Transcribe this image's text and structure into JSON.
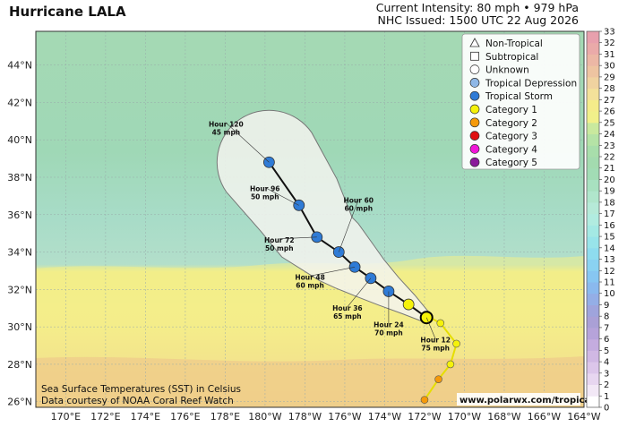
{
  "header": {
    "title": "Hurricane LALA",
    "intensity": "Current Intensity: 80 mph • 979 hPa",
    "issued": "NHC Issued: 1500 UTC 22 Aug 2026"
  },
  "map": {
    "lat_labels": [
      "44°N",
      "42°N",
      "40°N",
      "38°N",
      "36°N",
      "34°N",
      "32°N",
      "30°N",
      "28°N",
      "26°N"
    ],
    "lon_labels": [
      "170°E",
      "172°E",
      "174°E",
      "176°E",
      "178°E",
      "180°W",
      "178°W",
      "176°W",
      "174°W",
      "172°W",
      "170°W",
      "168°W",
      "166°W",
      "164°W"
    ],
    "lat_range": [
      25.7,
      45.8
    ],
    "lon_range": [
      168.5,
      196.0
    ],
    "gridlines": true
  },
  "legend": {
    "items": [
      {
        "label": "Non-Tropical",
        "marker": "triangle",
        "color": "#ffffff"
      },
      {
        "label": "Subtropical",
        "marker": "square",
        "color": "#ffffff"
      },
      {
        "label": "Unknown",
        "marker": "circle",
        "color": "#ffffff"
      },
      {
        "label": "Tropical Depression",
        "marker": "circle",
        "color": "#8fb8e6"
      },
      {
        "label": "Tropical Storm",
        "marker": "circle",
        "color": "#2f7bd6"
      },
      {
        "label": "Category 1",
        "marker": "circle",
        "color": "#f5f20a"
      },
      {
        "label": "Category 2",
        "marker": "circle",
        "color": "#f59a0a"
      },
      {
        "label": "Category 3",
        "marker": "circle",
        "color": "#e01010"
      },
      {
        "label": "Category 4",
        "marker": "circle",
        "color": "#f018d8"
      },
      {
        "label": "Category 5",
        "marker": "circle",
        "color": "#8a1a9a"
      }
    ]
  },
  "colorbar": {
    "labels": [
      "0",
      "1",
      "2",
      "3",
      "4",
      "5",
      "6",
      "7",
      "8",
      "9",
      "10",
      "11",
      "12",
      "13",
      "14",
      "15",
      "16",
      "17",
      "18",
      "19",
      "20",
      "21",
      "22",
      "23",
      "24",
      "25",
      "26",
      "27",
      "28",
      "29",
      "30",
      "31",
      "32",
      "33"
    ]
  },
  "past_track": [
    {
      "lat": 26.1,
      "lon": 188.0,
      "cat": "cat2"
    },
    {
      "lat": 27.2,
      "lon": 188.7,
      "cat": "cat2"
    },
    {
      "lat": 28.0,
      "lon": 189.3,
      "cat": "cat1"
    },
    {
      "lat": 29.1,
      "lon": 189.6,
      "cat": "cat1"
    },
    {
      "lat": 30.2,
      "lon": 188.8,
      "cat": "cat1"
    },
    {
      "lat": 30.6,
      "lon": 188.1,
      "cat": "cat1"
    }
  ],
  "forecast_track": [
    {
      "lat": 30.5,
      "lon": 188.1,
      "cat": "cat1"
    },
    {
      "lat": 31.2,
      "lon": 187.2,
      "cat": "cat1"
    },
    {
      "lat": 31.9,
      "lon": 186.2,
      "cat": "ts"
    },
    {
      "lat": 32.6,
      "lon": 185.3,
      "cat": "ts"
    },
    {
      "lat": 33.2,
      "lon": 184.5,
      "cat": "ts"
    },
    {
      "lat": 34.0,
      "lon": 183.7,
      "cat": "ts"
    },
    {
      "lat": 34.8,
      "lon": 182.6,
      "cat": "ts"
    },
    {
      "lat": 36.5,
      "lon": 181.7,
      "cat": "ts"
    },
    {
      "lat": 38.8,
      "lon": 180.2,
      "cat": "ts"
    }
  ],
  "forecast_labels": [
    {
      "hour": "Hour 12",
      "speed": "75 mph",
      "lat": 30.5,
      "lon": 188.1
    },
    {
      "hour": "Hour 24",
      "speed": "70 mph",
      "lat": 31.9,
      "lon": 186.2
    },
    {
      "hour": "Hour 36",
      "speed": "65 mph",
      "lat": 32.6,
      "lon": 185.3
    },
    {
      "hour": "Hour 48",
      "speed": "60 mph",
      "lat": 33.2,
      "lon": 184.5
    },
    {
      "hour": "Hour 60",
      "speed": "60 mph",
      "lat": 34.0,
      "lon": 183.7
    },
    {
      "hour": "Hour 72",
      "speed": "50 mph",
      "lat": 34.8,
      "lon": 182.6
    },
    {
      "hour": "Hour 96",
      "speed": "50 mph",
      "lat": 36.5,
      "lon": 181.7
    },
    {
      "hour": "Hour 120",
      "speed": "45 mph",
      "lat": 38.8,
      "lon": 180.2
    }
  ],
  "footer": {
    "sst_line1": "Sea Surface Temperatures (SST) in Celsius",
    "sst_line2": "Data courtesy of NOAA Coral Reef Watch",
    "website": "www.polarwx.com/tropical"
  },
  "colors": {
    "cat1": "#f5f20a",
    "cat2": "#f59a0a",
    "ts": "#2f7bd6",
    "cone_fill": "#f3f3ef",
    "cone_stroke": "#777777"
  }
}
